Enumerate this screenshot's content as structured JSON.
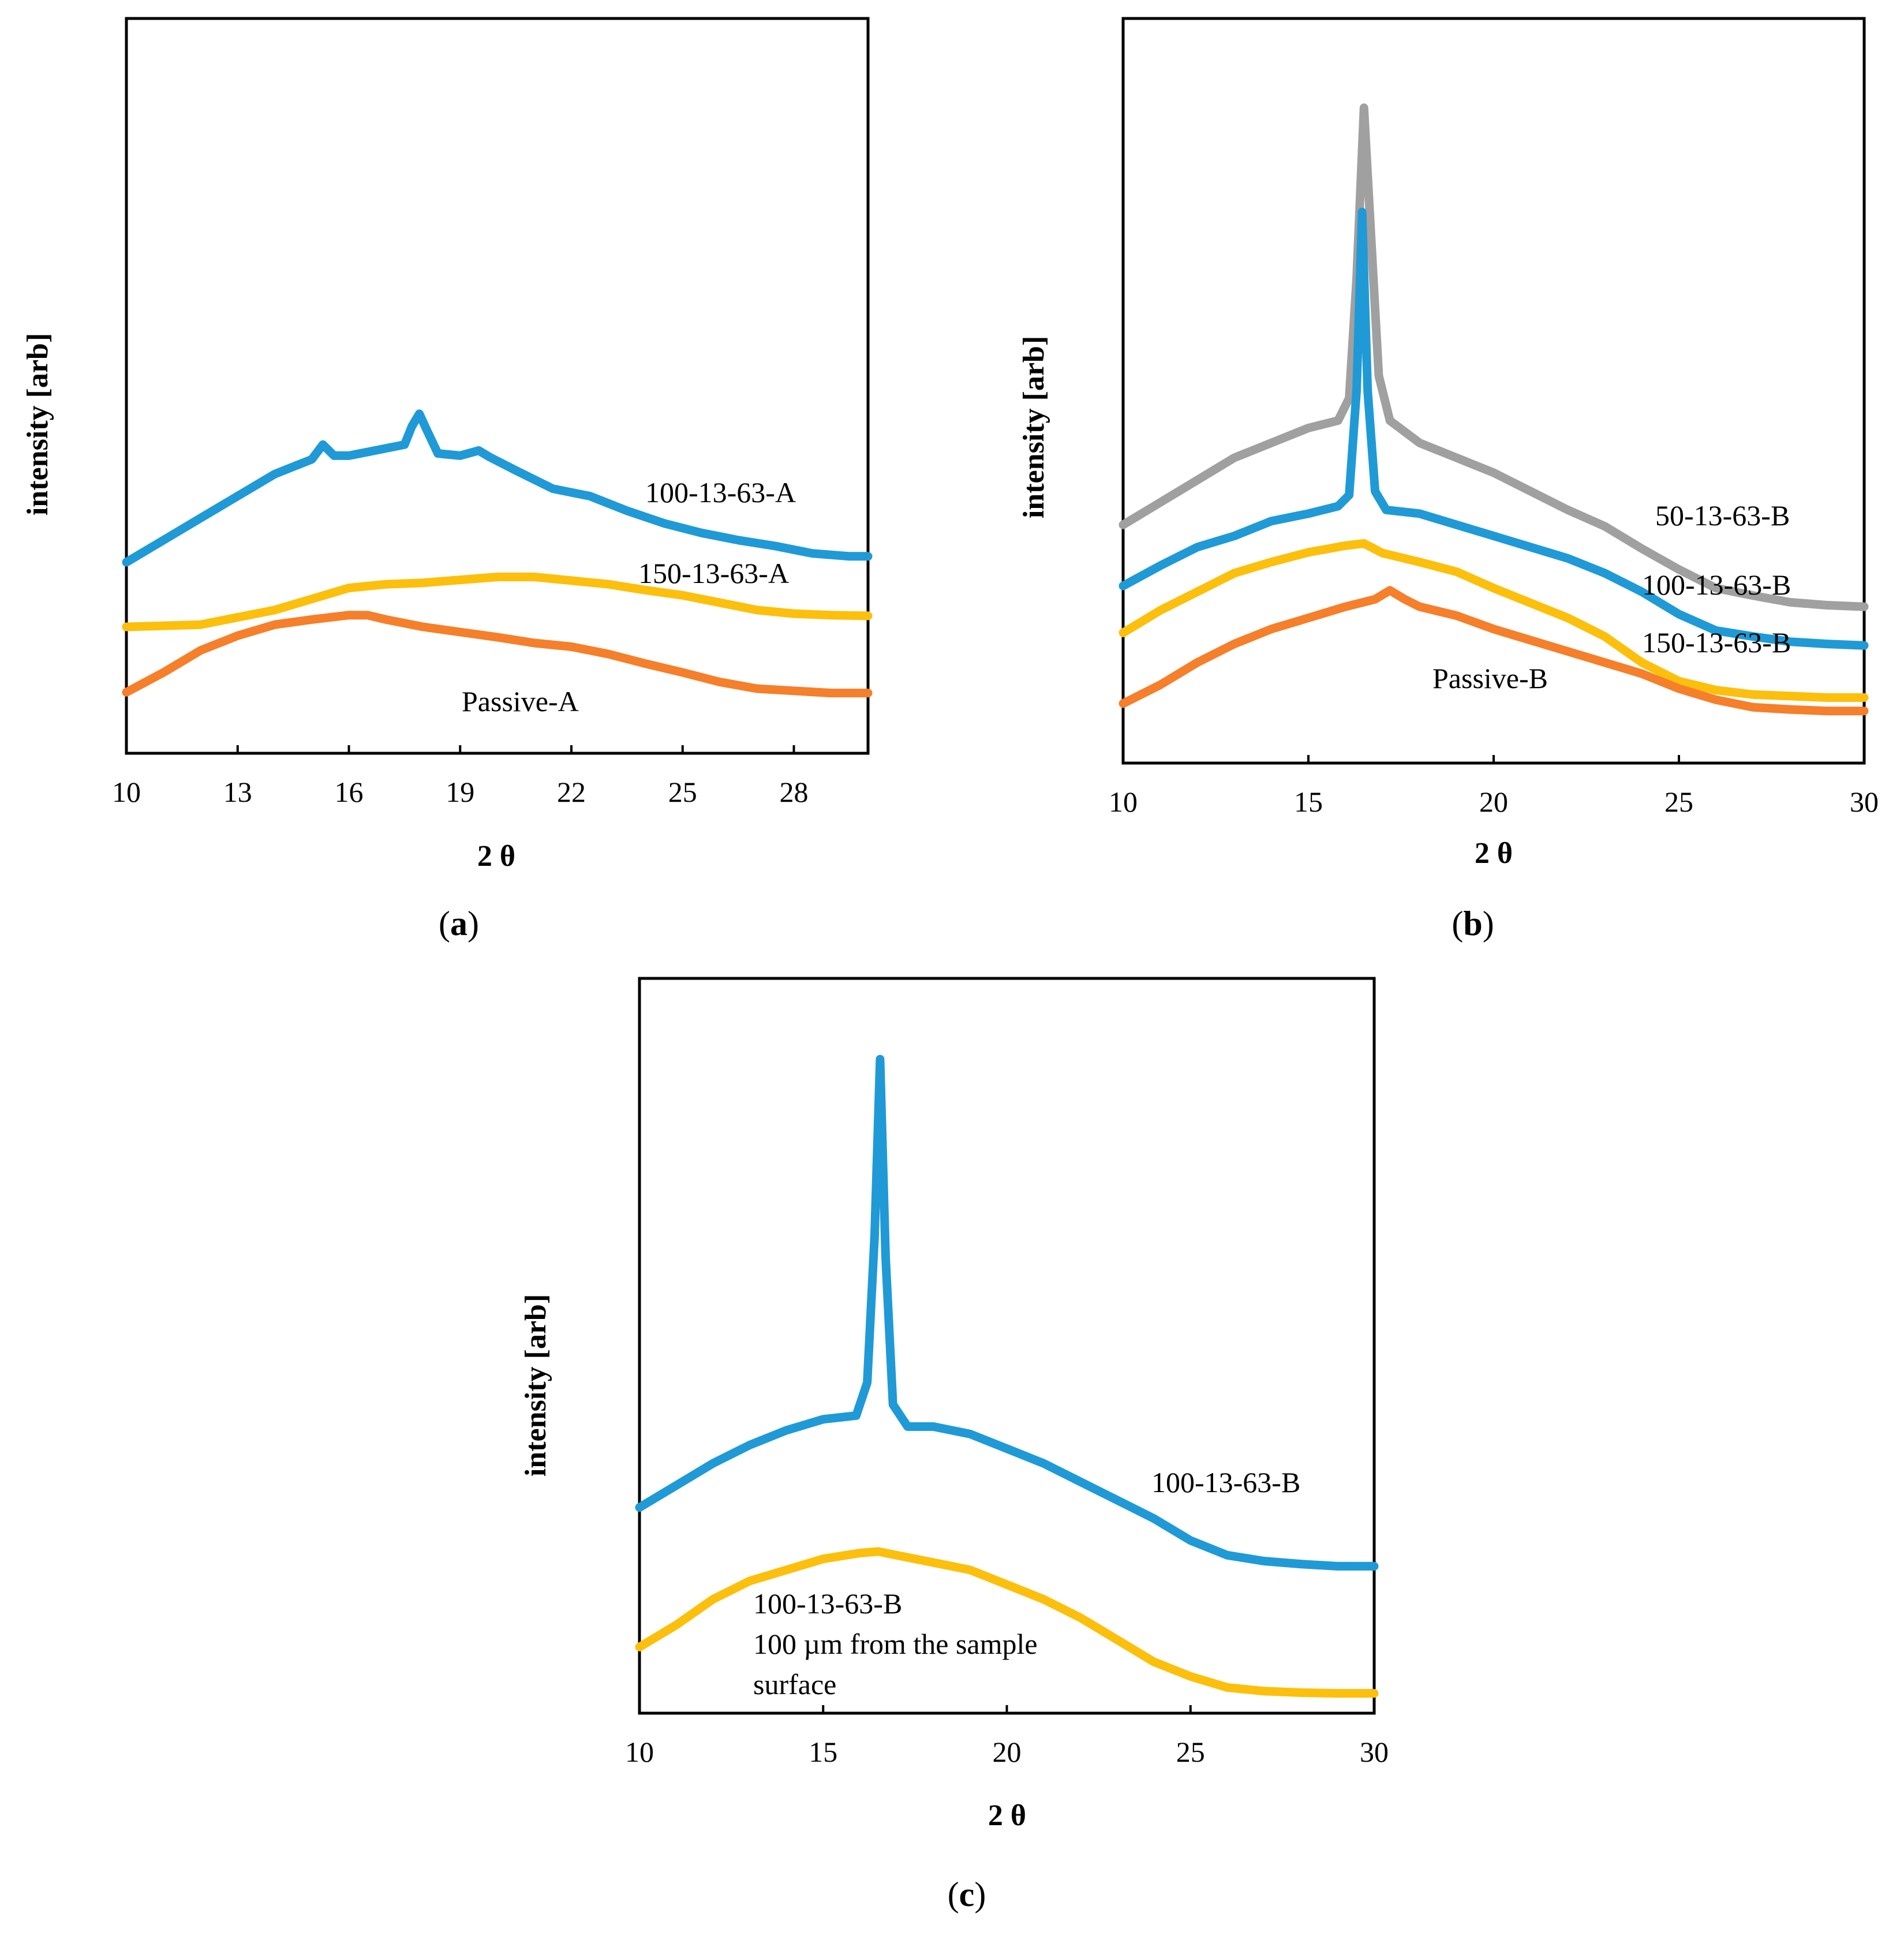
{
  "colors": {
    "blue": "#1f9ad6",
    "yellow": "#fcbf0c",
    "orange": "#f57f2a",
    "gray": "#a0a0a0"
  },
  "chart_data": [
    {
      "type": "line",
      "panel_letter": "a",
      "xlabel": "2 θ",
      "ylabel": "intensity [arb]",
      "xlim": [
        10,
        30
      ],
      "xticks": [
        10,
        13,
        16,
        19,
        22,
        25,
        28
      ],
      "ylim": [
        0,
        1
      ],
      "grid": false,
      "series": [
        {
          "name": "100-13-63-A",
          "color": "blue",
          "x": [
            10,
            12,
            14,
            15,
            15.3,
            15.6,
            16,
            16.5,
            17,
            17.5,
            17.7,
            17.9,
            18.1,
            18.4,
            19,
            19.5,
            19.8,
            20.5,
            21.5,
            22.5,
            23.5,
            24.5,
            25.5,
            26.5,
            27.5,
            28.5,
            29.5,
            30
          ],
          "y": [
            0.26,
            0.32,
            0.38,
            0.4,
            0.42,
            0.405,
            0.405,
            0.41,
            0.415,
            0.42,
            0.445,
            0.462,
            0.44,
            0.408,
            0.405,
            0.412,
            0.403,
            0.385,
            0.36,
            0.35,
            0.33,
            0.313,
            0.3,
            0.29,
            0.282,
            0.272,
            0.268,
            0.268
          ]
        },
        {
          "name": "150-13-63-A",
          "color": "yellow",
          "x": [
            10,
            12,
            14,
            16,
            17,
            18,
            19,
            20,
            21,
            22,
            23,
            24,
            25,
            26,
            27,
            28,
            29,
            30
          ],
          "y": [
            0.172,
            0.175,
            0.195,
            0.225,
            0.23,
            0.232,
            0.236,
            0.24,
            0.24,
            0.235,
            0.23,
            0.222,
            0.215,
            0.205,
            0.195,
            0.19,
            0.188,
            0.187
          ]
        },
        {
          "name": "Passive-A",
          "color": "orange",
          "x": [
            10,
            11,
            12,
            13,
            14,
            15,
            16,
            16.5,
            17,
            18,
            19,
            20,
            21,
            22,
            23,
            24,
            25,
            26,
            27,
            28,
            29,
            30
          ],
          "y": [
            0.083,
            0.11,
            0.14,
            0.16,
            0.175,
            0.182,
            0.188,
            0.188,
            0.182,
            0.172,
            0.165,
            0.158,
            0.15,
            0.145,
            0.135,
            0.122,
            0.11,
            0.097,
            0.088,
            0.085,
            0.082,
            0.082
          ]
        }
      ]
    },
    {
      "type": "line",
      "panel_letter": "b",
      "xlabel": "2 θ",
      "ylabel": "intensity [arb]",
      "xlim": [
        10,
        30
      ],
      "xticks": [
        10,
        15,
        20,
        25,
        30
      ],
      "ylim": [
        0,
        1
      ],
      "grid": false,
      "series": [
        {
          "name": "50-13-63-B",
          "color": "gray",
          "x": [
            10,
            11,
            12,
            13,
            14,
            15,
            15.8,
            16.1,
            16.3,
            16.5,
            16.7,
            16.9,
            17.2,
            18,
            19,
            20,
            21,
            22,
            23,
            24,
            25,
            26,
            27,
            28,
            29,
            30
          ],
          "y": [
            0.32,
            0.35,
            0.38,
            0.41,
            0.43,
            0.45,
            0.46,
            0.49,
            0.65,
            0.88,
            0.7,
            0.52,
            0.46,
            0.43,
            0.41,
            0.39,
            0.365,
            0.34,
            0.318,
            0.288,
            0.26,
            0.235,
            0.225,
            0.216,
            0.212,
            0.21
          ]
        },
        {
          "name": "100-13-63-B",
          "color": "blue",
          "x": [
            10,
            11,
            12,
            13,
            14,
            15,
            15.8,
            16.1,
            16.3,
            16.45,
            16.6,
            16.8,
            17.1,
            18,
            19,
            20,
            21,
            22,
            23,
            24,
            25,
            26,
            27,
            28,
            29,
            30
          ],
          "y": [
            0.238,
            0.265,
            0.29,
            0.305,
            0.325,
            0.335,
            0.345,
            0.36,
            0.5,
            0.74,
            0.5,
            0.365,
            0.34,
            0.335,
            0.32,
            0.305,
            0.29,
            0.275,
            0.255,
            0.23,
            0.2,
            0.178,
            0.17,
            0.163,
            0.16,
            0.158
          ]
        },
        {
          "name": "150-13-63-B",
          "color": "yellow",
          "x": [
            10,
            11,
            12,
            13,
            14,
            15,
            16,
            16.5,
            17,
            18,
            19,
            20,
            21,
            22,
            23,
            24,
            25,
            26,
            27,
            28,
            29,
            30
          ],
          "y": [
            0.175,
            0.205,
            0.23,
            0.255,
            0.27,
            0.283,
            0.292,
            0.295,
            0.282,
            0.27,
            0.257,
            0.235,
            0.215,
            0.195,
            0.17,
            0.135,
            0.11,
            0.098,
            0.092,
            0.09,
            0.088,
            0.088
          ]
        },
        {
          "name": "Passive-B",
          "color": "orange",
          "x": [
            10,
            11,
            12,
            13,
            14,
            15,
            16,
            16.8,
            17.2,
            17.6,
            18,
            19,
            20,
            21,
            22,
            23,
            24,
            25,
            26,
            27,
            28,
            29,
            30
          ],
          "y": [
            0.08,
            0.105,
            0.135,
            0.16,
            0.18,
            0.195,
            0.21,
            0.22,
            0.232,
            0.22,
            0.21,
            0.198,
            0.18,
            0.165,
            0.15,
            0.135,
            0.12,
            0.1,
            0.085,
            0.075,
            0.072,
            0.07,
            0.07
          ]
        }
      ]
    },
    {
      "type": "line",
      "panel_letter": "c",
      "xlabel": "2 θ",
      "ylabel": "intensity [arb]",
      "xlim": [
        10,
        30
      ],
      "xticks": [
        10,
        15,
        20,
        25,
        30
      ],
      "ylim": [
        0,
        1
      ],
      "grid": false,
      "series": [
        {
          "name": "100-13-63-B",
          "color": "blue",
          "x": [
            10,
            11,
            12,
            13,
            14,
            15,
            15.9,
            16.2,
            16.4,
            16.55,
            16.7,
            16.9,
            17.3,
            18,
            19,
            20,
            21,
            22,
            23,
            24,
            25,
            26,
            27,
            28,
            29,
            30
          ],
          "y": [
            0.28,
            0.31,
            0.34,
            0.365,
            0.385,
            0.4,
            0.405,
            0.45,
            0.65,
            0.89,
            0.62,
            0.42,
            0.39,
            0.39,
            0.38,
            0.36,
            0.34,
            0.315,
            0.29,
            0.265,
            0.235,
            0.215,
            0.207,
            0.203,
            0.2,
            0.2
          ]
        },
        {
          "name": "100-13-63-B",
          "annotation": [
            "100 µm from the sample",
            "surface"
          ],
          "color": "yellow",
          "x": [
            10,
            11,
            12,
            13,
            14,
            15,
            16,
            16.5,
            17,
            18,
            19,
            20,
            21,
            22,
            23,
            24,
            25,
            26,
            27,
            28,
            29,
            30
          ],
          "y": [
            0.09,
            0.12,
            0.155,
            0.18,
            0.195,
            0.21,
            0.218,
            0.22,
            0.215,
            0.205,
            0.195,
            0.175,
            0.155,
            0.13,
            0.1,
            0.07,
            0.05,
            0.035,
            0.03,
            0.028,
            0.027,
            0.027
          ]
        }
      ]
    }
  ]
}
